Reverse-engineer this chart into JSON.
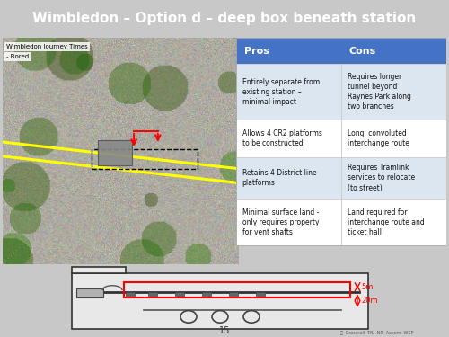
{
  "title": "Wimbledon – Option d – deep box beneath station",
  "title_bg": "#1e3f6e",
  "title_fg": "#ffffff",
  "map_label1": "Wimbledon Journey Times",
  "map_label2": "- Bored",
  "pros_header": "Pros",
  "cons_header": "Cons",
  "header_bg": "#4472c4",
  "header_fg": "#ffffff",
  "row_bg_odd": "#dce6f1",
  "row_bg_even": "#ffffff",
  "pros": [
    "Entirely separate from\nexisting station –\nminimal impact",
    "Allows 4 CR2 platforms\nto be constructed",
    "Retains 4 District line\nplatforms",
    "Minimal surface land -\nonly requires property\nfor vent shafts"
  ],
  "cons": [
    "Requires longer\ntunnel beyond\nRaynes Park along\ntwo branches",
    "Long, convoluted\ninterchange route",
    "Requires Tramlink\nservices to relocate\n(to street)",
    "Land required for\ninterchange route and\nticket hall"
  ],
  "diagram_label": "15",
  "dim1": "5m",
  "dim2": "20m",
  "map_bg": "#b5b8ad",
  "page_bg": "#c8c8c8",
  "diag_bg": "#d0d0d0"
}
